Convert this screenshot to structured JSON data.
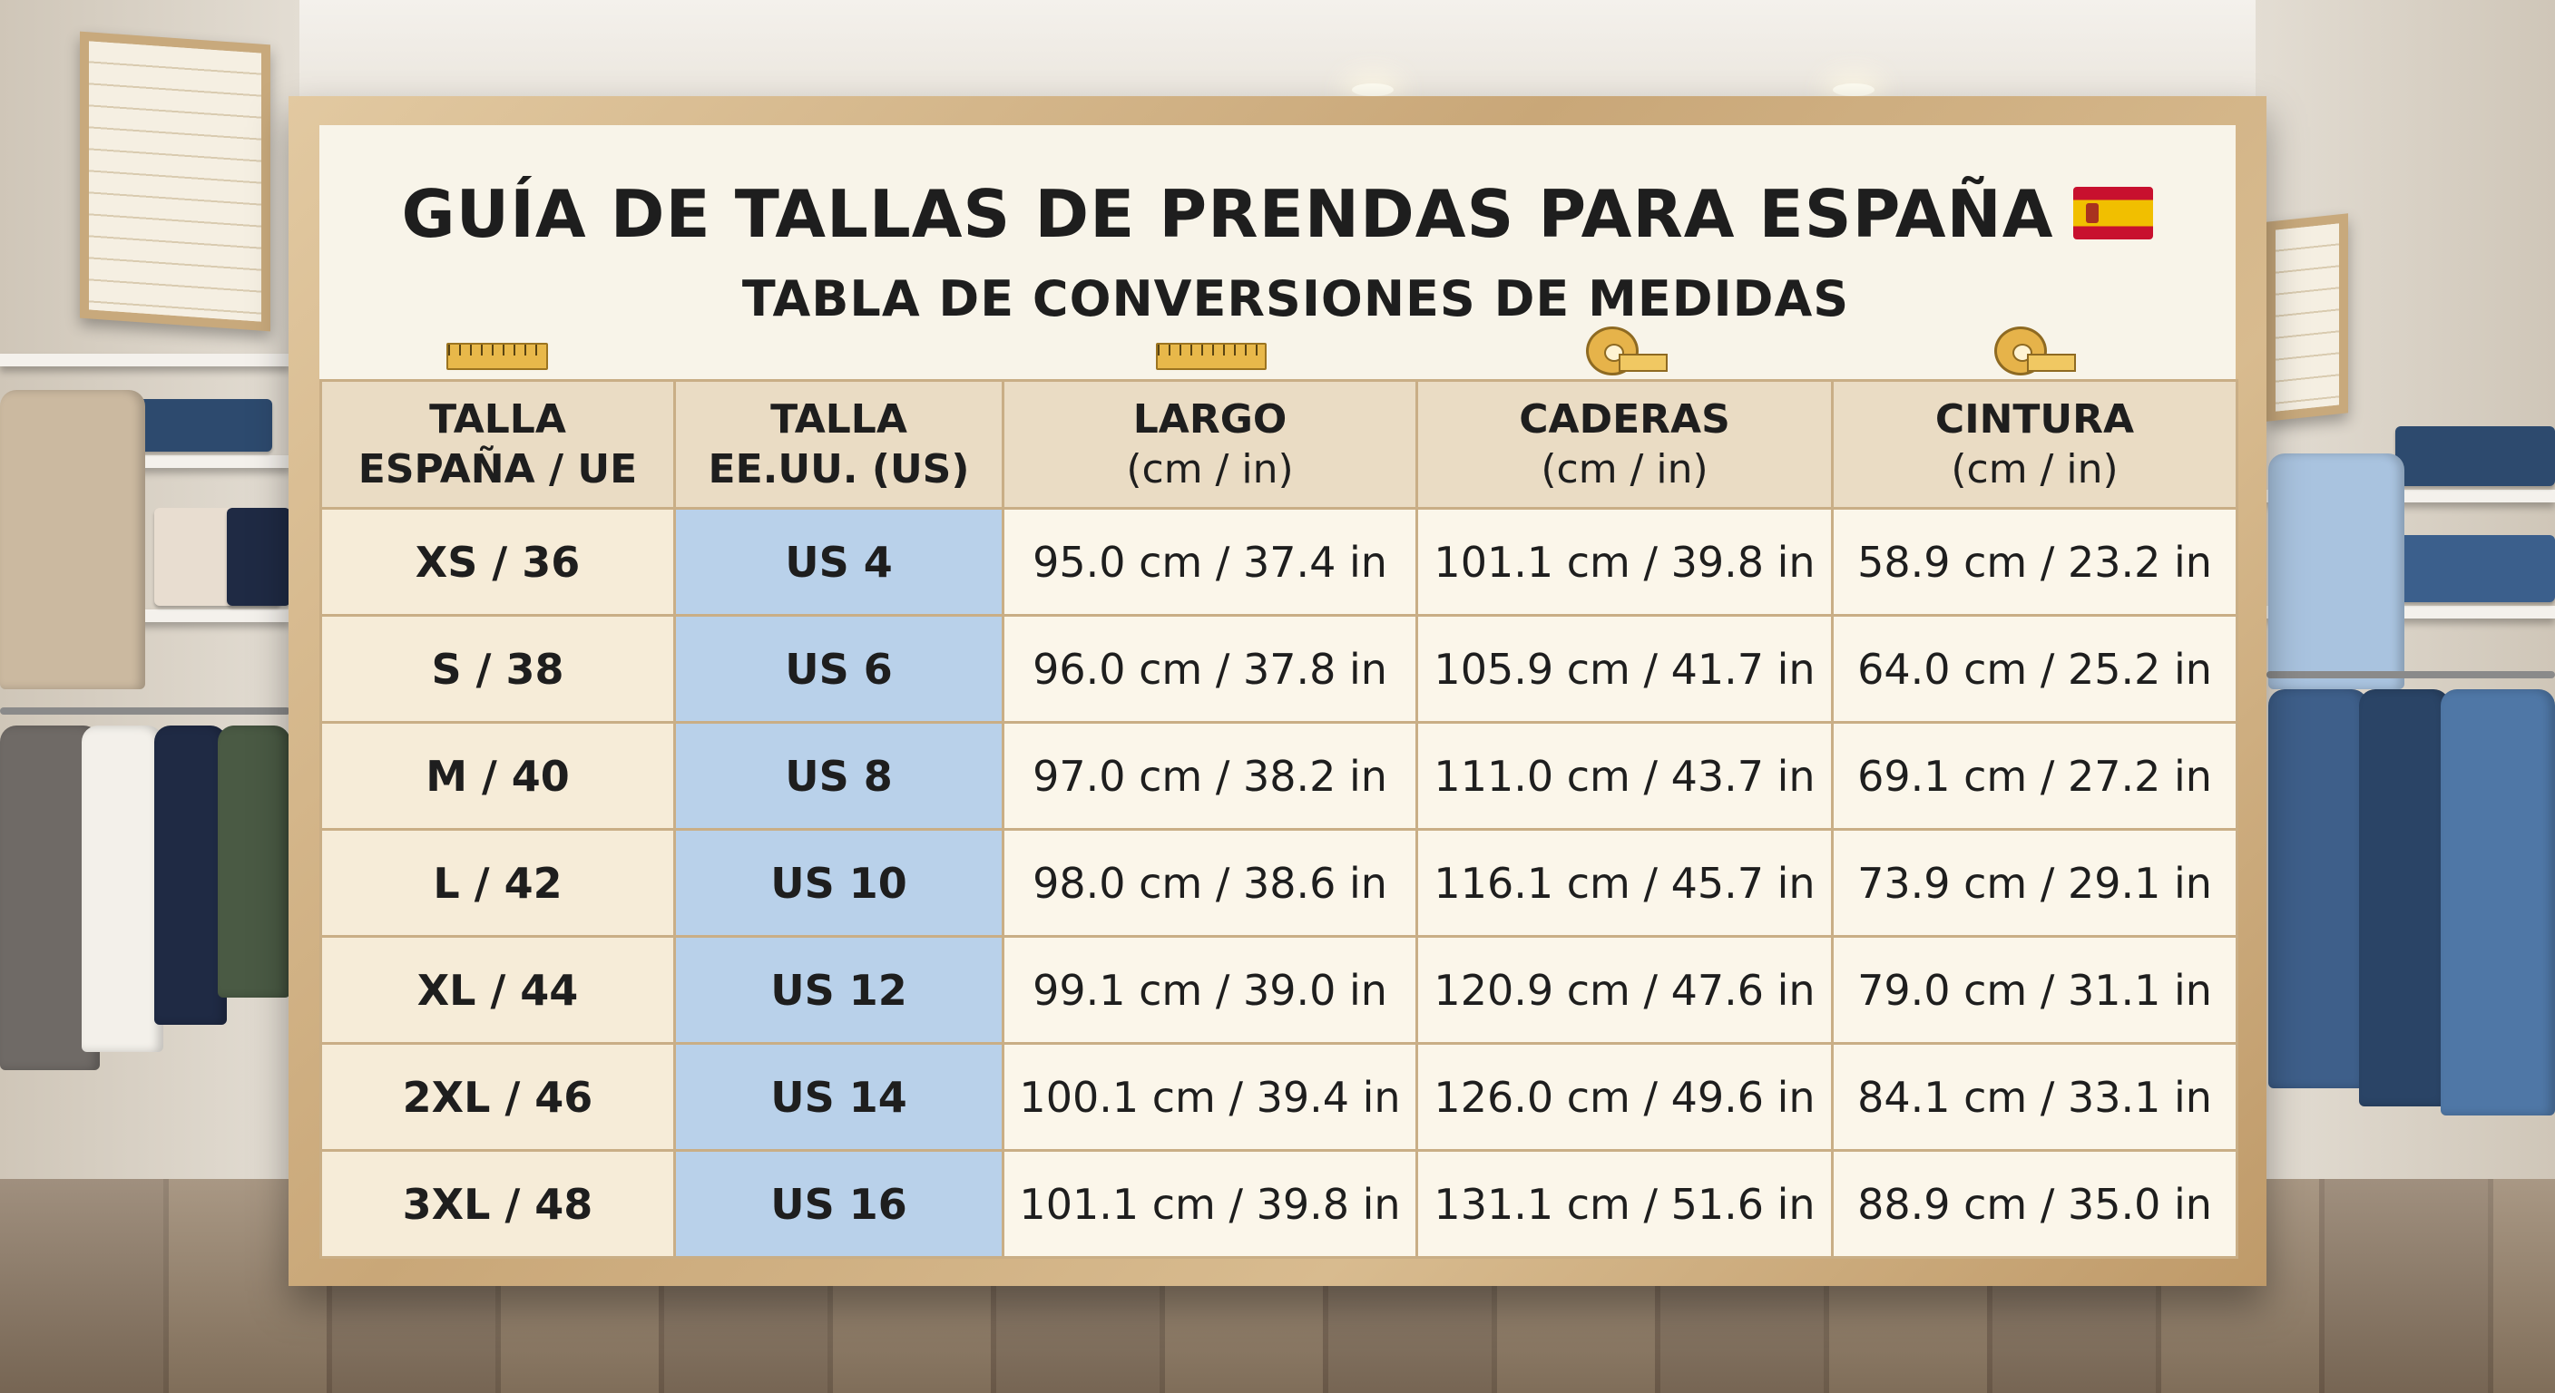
{
  "title": "GUÍA DE TALLAS DE PRENDAS PARA ESPAÑA",
  "subtitle": "TABLA DE CONVERSIONES DE MEDIDAS",
  "icons": [
    "ruler-icon",
    "ruler-icon",
    "measuring-tape-icon",
    "measuring-tape-icon",
    "spain-flag-icon"
  ],
  "colors": {
    "frame": "#c9a778",
    "header_bg": "#eadcc4",
    "size_bg": "#f6ecd8",
    "us_bg": "#b9d1ea",
    "cell_bg": "#fbf6ea",
    "flag_red": "#c8102e",
    "flag_yellow": "#f1bf00"
  },
  "headers": [
    {
      "line1": "TALLA",
      "line2": "ESPAÑA / UE"
    },
    {
      "line1": "TALLA",
      "line2": "EE.UU. (US)"
    },
    {
      "line1": "LARGO",
      "line2": "(cm / in)"
    },
    {
      "line1": "CADERAS",
      "line2": "(cm / in)"
    },
    {
      "line1": "CINTURA",
      "line2": "(cm / in)"
    }
  ],
  "rows": [
    {
      "eu": "XS / 36",
      "us": "US 4",
      "largo": "95.0 cm / 37.4 in",
      "caderas": "101.1 cm / 39.8 in",
      "cintura": "58.9 cm / 23.2 in"
    },
    {
      "eu": "S / 38",
      "us": "US 6",
      "largo": "96.0 cm / 37.8 in",
      "caderas": "105.9 cm / 41.7 in",
      "cintura": "64.0 cm / 25.2 in"
    },
    {
      "eu": "M / 40",
      "us": "US 8",
      "largo": "97.0 cm / 38.2 in",
      "caderas": "111.0 cm / 43.7 in",
      "cintura": "69.1 cm / 27.2 in"
    },
    {
      "eu": "L / 42",
      "us": "US 10",
      "largo": "98.0 cm / 38.6 in",
      "caderas": "116.1 cm / 45.7 in",
      "cintura": "73.9 cm / 29.1 in"
    },
    {
      "eu": "XL / 44",
      "us": "US 12",
      "largo": "99.1 cm / 39.0 in",
      "caderas": "120.9 cm / 47.6 in",
      "cintura": "79.0 cm / 31.1 in"
    },
    {
      "eu": "2XL / 46",
      "us": "US 14",
      "largo": "100.1 cm / 39.4 in",
      "caderas": "126.0 cm / 49.6 in",
      "cintura": "84.1 cm / 33.1 in"
    },
    {
      "eu": "3XL / 48",
      "us": "US 16",
      "largo": "101.1 cm / 39.8 in",
      "caderas": "131.1 cm / 51.6 in",
      "cintura": "88.9 cm / 35.0 in"
    }
  ]
}
